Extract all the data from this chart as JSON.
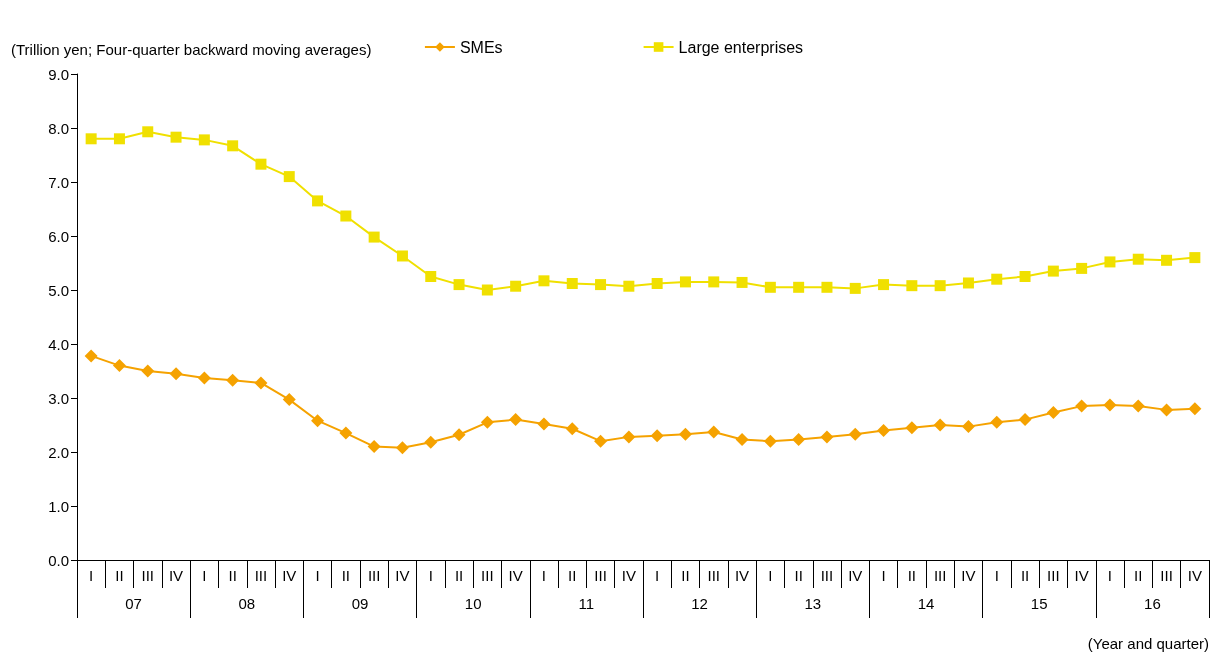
{
  "chart_data": {
    "type": "line",
    "ylabel": "(Trillion yen; Four-quarter backward moving averages)",
    "xlabel": "(Year and quarter)",
    "categories": [
      "I",
      "II",
      "III",
      "IV",
      "I",
      "II",
      "III",
      "IV",
      "I",
      "II",
      "III",
      "IV",
      "I",
      "II",
      "III",
      "IV",
      "I",
      "II",
      "III",
      "IV",
      "I",
      "II",
      "III",
      "IV",
      "I",
      "II",
      "III",
      "IV",
      "I",
      "II",
      "III",
      "IV",
      "I",
      "II",
      "III",
      "IV",
      "I",
      "II",
      "III",
      "IV"
    ],
    "annotations": [
      "07",
      "08",
      "09",
      "10",
      "11",
      "12",
      "13",
      "14",
      "15",
      "16"
    ],
    "ylim": [
      0,
      9
    ],
    "yticks": [
      {
        "value": 0,
        "label": "0.0"
      },
      {
        "value": 1,
        "label": "1.0"
      },
      {
        "value": 2,
        "label": "2.0"
      },
      {
        "value": 3,
        "label": "3.0"
      },
      {
        "value": 4,
        "label": "4.0"
      },
      {
        "value": 5,
        "label": "5.0"
      },
      {
        "value": 6,
        "label": "6.0"
      },
      {
        "value": 7,
        "label": "7.0"
      },
      {
        "value": 8,
        "label": "8.0"
      },
      {
        "value": 9,
        "label": "9.0"
      }
    ],
    "grid": false,
    "legend": "top",
    "series": [
      {
        "name": "SMEs",
        "color": "#f5a200",
        "marker": "diamond",
        "values": [
          3.78,
          3.6,
          3.5,
          3.45,
          3.37,
          3.33,
          3.28,
          2.97,
          2.58,
          2.35,
          2.1,
          2.08,
          2.18,
          2.32,
          2.55,
          2.6,
          2.52,
          2.43,
          2.2,
          2.28,
          2.3,
          2.33,
          2.37,
          2.23,
          2.2,
          2.23,
          2.28,
          2.33,
          2.4,
          2.45,
          2.5,
          2.47,
          2.55,
          2.6,
          2.73,
          2.85,
          2.87,
          2.85,
          2.78,
          2.8
        ]
      },
      {
        "name": "Large enterprises",
        "color": "#f0e000",
        "marker": "square",
        "values": [
          7.8,
          7.8,
          7.93,
          7.83,
          7.78,
          7.67,
          7.33,
          7.1,
          6.65,
          6.37,
          5.98,
          5.63,
          5.25,
          5.1,
          5.0,
          5.07,
          5.17,
          5.12,
          5.1,
          5.07,
          5.12,
          5.15,
          5.15,
          5.14,
          5.05,
          5.05,
          5.05,
          5.03,
          5.1,
          5.08,
          5.08,
          5.13,
          5.2,
          5.25,
          5.35,
          5.4,
          5.52,
          5.57,
          5.55,
          5.6
        ]
      }
    ]
  }
}
